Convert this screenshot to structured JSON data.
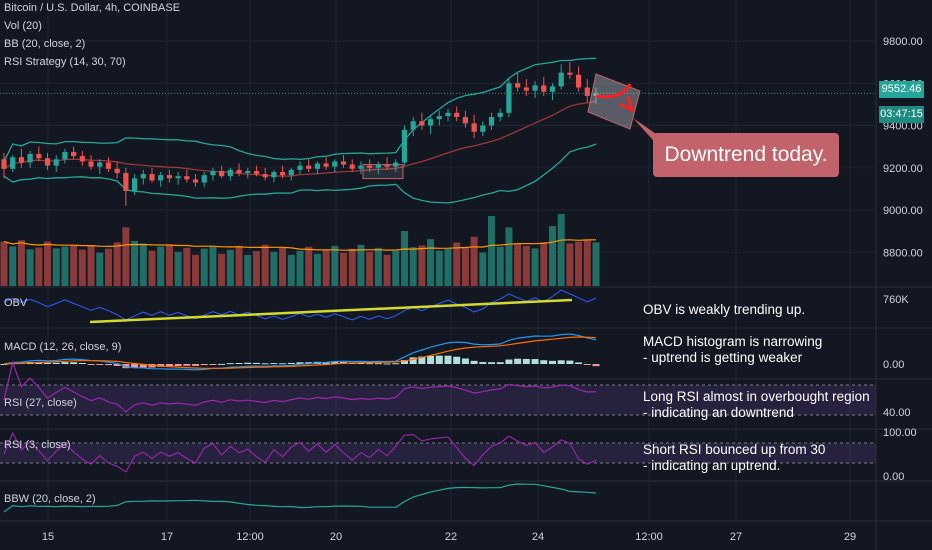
{
  "header": {
    "symbol_title": "Bitcoin / U.S. Dollar, 4h, COINBASE",
    "vol_label": "Vol (20)",
    "bb_label": "BB (20, close, 2)",
    "rsi_strategy_label": "RSI Strategy (14, 30, 70)"
  },
  "price_axis": {
    "labels": [
      "9800.00",
      "9600.00",
      "9400.00",
      "9200.00",
      "9000.00",
      "8800.00"
    ],
    "current_price": "9552.46",
    "countdown": "03:47:15"
  },
  "time_axis": {
    "labels": [
      "15",
      "17",
      "12:00",
      "20",
      "22",
      "24",
      "12:00",
      "27",
      "29"
    ]
  },
  "panes": {
    "obv": {
      "label": "OBV",
      "axis_label": "760K"
    },
    "macd": {
      "label": "MACD (12, 26, close, 9)",
      "axis_label": "0.00"
    },
    "rsi_long": {
      "label": "RSI (27, close)",
      "axis_label": "40.00"
    },
    "rsi_short": {
      "label": "RSI (3, close)",
      "axis_top": "100.00",
      "axis_bottom": "0.00"
    },
    "bbw": {
      "label": "BBW (20, close, 2)"
    }
  },
  "annotations": {
    "callout": "Downtrend today.",
    "obv_note": "OBV is weakly trending up.",
    "macd_note_1": "MACD histogram is narrowing",
    "macd_note_2": " - uptrend is getting weaker",
    "rsi_long_note_1": "Long RSI almost in overbought region",
    "rsi_long_note_2": " - indicating an downtrend",
    "rsi_short_note_1": "Short RSI bounced up from 30",
    "rsi_short_note_2": " - indicating an uptrend."
  },
  "colors": {
    "background": "#131722",
    "up_candle": "#26a69a",
    "down_candle": "#ef5350",
    "bollinger": "#26a69a",
    "bollinger_basis": "#a83a3a",
    "volume_ma": "#ff9800",
    "obv_line": "#2962ff",
    "trendline": "#d4d92e",
    "macd_line": "#2196f3",
    "signal_line": "#ff6d00",
    "rsi_line": "#9c27b0",
    "rsi_band": "#7e57c2",
    "callout": "#c2626a",
    "arrow": "#ff1f1f"
  },
  "chart_data": {
    "type": "candlestick",
    "symbol": "Bitcoin / U.S. Dollar",
    "interval": "4h",
    "exchange": "COINBASE",
    "y_axis_range": [
      8700,
      9900
    ],
    "x_ticks": [
      "15",
      "17",
      "12:00",
      "20",
      "22",
      "24",
      "12:00",
      "27",
      "29"
    ],
    "last_price": 9552.46,
    "candles_approx": [
      {
        "o": 9240,
        "h": 9270,
        "l": 9150,
        "c": 9195
      },
      {
        "o": 9195,
        "h": 9260,
        "l": 9180,
        "c": 9250
      },
      {
        "o": 9250,
        "h": 9290,
        "l": 9200,
        "c": 9225
      },
      {
        "o": 9225,
        "h": 9280,
        "l": 9200,
        "c": 9265
      },
      {
        "o": 9265,
        "h": 9300,
        "l": 9230,
        "c": 9245
      },
      {
        "o": 9245,
        "h": 9270,
        "l": 9190,
        "c": 9210
      },
      {
        "o": 9210,
        "h": 9260,
        "l": 9180,
        "c": 9240
      },
      {
        "o": 9240,
        "h": 9290,
        "l": 9220,
        "c": 9275
      },
      {
        "o": 9275,
        "h": 9300,
        "l": 9240,
        "c": 9255
      },
      {
        "o": 9255,
        "h": 9280,
        "l": 9210,
        "c": 9230
      },
      {
        "o": 9230,
        "h": 9260,
        "l": 9190,
        "c": 9205
      },
      {
        "o": 9205,
        "h": 9240,
        "l": 9170,
        "c": 9225
      },
      {
        "o": 9225,
        "h": 9250,
        "l": 9180,
        "c": 9195
      },
      {
        "o": 9195,
        "h": 9230,
        "l": 9150,
        "c": 9175
      },
      {
        "o": 9175,
        "h": 9200,
        "l": 9020,
        "c": 9090
      },
      {
        "o": 9090,
        "h": 9170,
        "l": 9070,
        "c": 9150
      },
      {
        "o": 9150,
        "h": 9190,
        "l": 9120,
        "c": 9170
      },
      {
        "o": 9170,
        "h": 9200,
        "l": 9130,
        "c": 9140
      },
      {
        "o": 9140,
        "h": 9180,
        "l": 9110,
        "c": 9165
      },
      {
        "o": 9165,
        "h": 9190,
        "l": 9130,
        "c": 9150
      },
      {
        "o": 9150,
        "h": 9180,
        "l": 9120,
        "c": 9160
      },
      {
        "o": 9160,
        "h": 9190,
        "l": 9130,
        "c": 9145
      },
      {
        "o": 9145,
        "h": 9170,
        "l": 9110,
        "c": 9130
      },
      {
        "o": 9130,
        "h": 9180,
        "l": 9110,
        "c": 9165
      },
      {
        "o": 9165,
        "h": 9200,
        "l": 9140,
        "c": 9185
      },
      {
        "o": 9185,
        "h": 9210,
        "l": 9150,
        "c": 9160
      },
      {
        "o": 9160,
        "h": 9200,
        "l": 9140,
        "c": 9190
      },
      {
        "o": 9190,
        "h": 9220,
        "l": 9160,
        "c": 9175
      },
      {
        "o": 9175,
        "h": 9200,
        "l": 9150,
        "c": 9185
      },
      {
        "o": 9185,
        "h": 9210,
        "l": 9160,
        "c": 9170
      },
      {
        "o": 9170,
        "h": 9200,
        "l": 9140,
        "c": 9155
      },
      {
        "o": 9155,
        "h": 9190,
        "l": 9130,
        "c": 9180
      },
      {
        "o": 9180,
        "h": 9210,
        "l": 9150,
        "c": 9165
      },
      {
        "o": 9165,
        "h": 9200,
        "l": 9140,
        "c": 9190
      },
      {
        "o": 9190,
        "h": 9230,
        "l": 9170,
        "c": 9210
      },
      {
        "o": 9210,
        "h": 9240,
        "l": 9180,
        "c": 9195
      },
      {
        "o": 9195,
        "h": 9230,
        "l": 9170,
        "c": 9220
      },
      {
        "o": 9220,
        "h": 9250,
        "l": 9190,
        "c": 9205
      },
      {
        "o": 9205,
        "h": 9240,
        "l": 9180,
        "c": 9230
      },
      {
        "o": 9230,
        "h": 9260,
        "l": 9200,
        "c": 9215
      },
      {
        "o": 9215,
        "h": 9240,
        "l": 9180,
        "c": 9195
      },
      {
        "o": 9195,
        "h": 9230,
        "l": 9170,
        "c": 9210
      },
      {
        "o": 9210,
        "h": 9240,
        "l": 9180,
        "c": 9200
      },
      {
        "o": 9200,
        "h": 9230,
        "l": 9170,
        "c": 9215
      },
      {
        "o": 9215,
        "h": 9250,
        "l": 9190,
        "c": 9205
      },
      {
        "o": 9205,
        "h": 9240,
        "l": 9180,
        "c": 9225
      },
      {
        "o": 9225,
        "h": 9400,
        "l": 9210,
        "c": 9380
      },
      {
        "o": 9380,
        "h": 9440,
        "l": 9350,
        "c": 9420
      },
      {
        "o": 9420,
        "h": 9460,
        "l": 9380,
        "c": 9400
      },
      {
        "o": 9400,
        "h": 9450,
        "l": 9360,
        "c": 9430
      },
      {
        "o": 9430,
        "h": 9470,
        "l": 9400,
        "c": 9445
      },
      {
        "o": 9445,
        "h": 9480,
        "l": 9420,
        "c": 9460
      },
      {
        "o": 9460,
        "h": 9490,
        "l": 9420,
        "c": 9440
      },
      {
        "o": 9440,
        "h": 9470,
        "l": 9390,
        "c": 9410
      },
      {
        "o": 9410,
        "h": 9450,
        "l": 9340,
        "c": 9370
      },
      {
        "o": 9370,
        "h": 9420,
        "l": 9350,
        "c": 9400
      },
      {
        "o": 9400,
        "h": 9460,
        "l": 9380,
        "c": 9440
      },
      {
        "o": 9440,
        "h": 9480,
        "l": 9420,
        "c": 9460
      },
      {
        "o": 9460,
        "h": 9620,
        "l": 9440,
        "c": 9600
      },
      {
        "o": 9600,
        "h": 9650,
        "l": 9560,
        "c": 9580
      },
      {
        "o": 9580,
        "h": 9620,
        "l": 9540,
        "c": 9565
      },
      {
        "o": 9565,
        "h": 9610,
        "l": 9530,
        "c": 9590
      },
      {
        "o": 9590,
        "h": 9630,
        "l": 9540,
        "c": 9560
      },
      {
        "o": 9560,
        "h": 9600,
        "l": 9520,
        "c": 9585
      },
      {
        "o": 9585,
        "h": 9690,
        "l": 9570,
        "c": 9650
      },
      {
        "o": 9650,
        "h": 9700,
        "l": 9620,
        "c": 9640
      },
      {
        "o": 9640,
        "h": 9680,
        "l": 9560,
        "c": 9580
      },
      {
        "o": 9580,
        "h": 9620,
        "l": 9510,
        "c": 9540
      },
      {
        "o": 9540,
        "h": 9580,
        "l": 9500,
        "c": 9552
      }
    ]
  }
}
